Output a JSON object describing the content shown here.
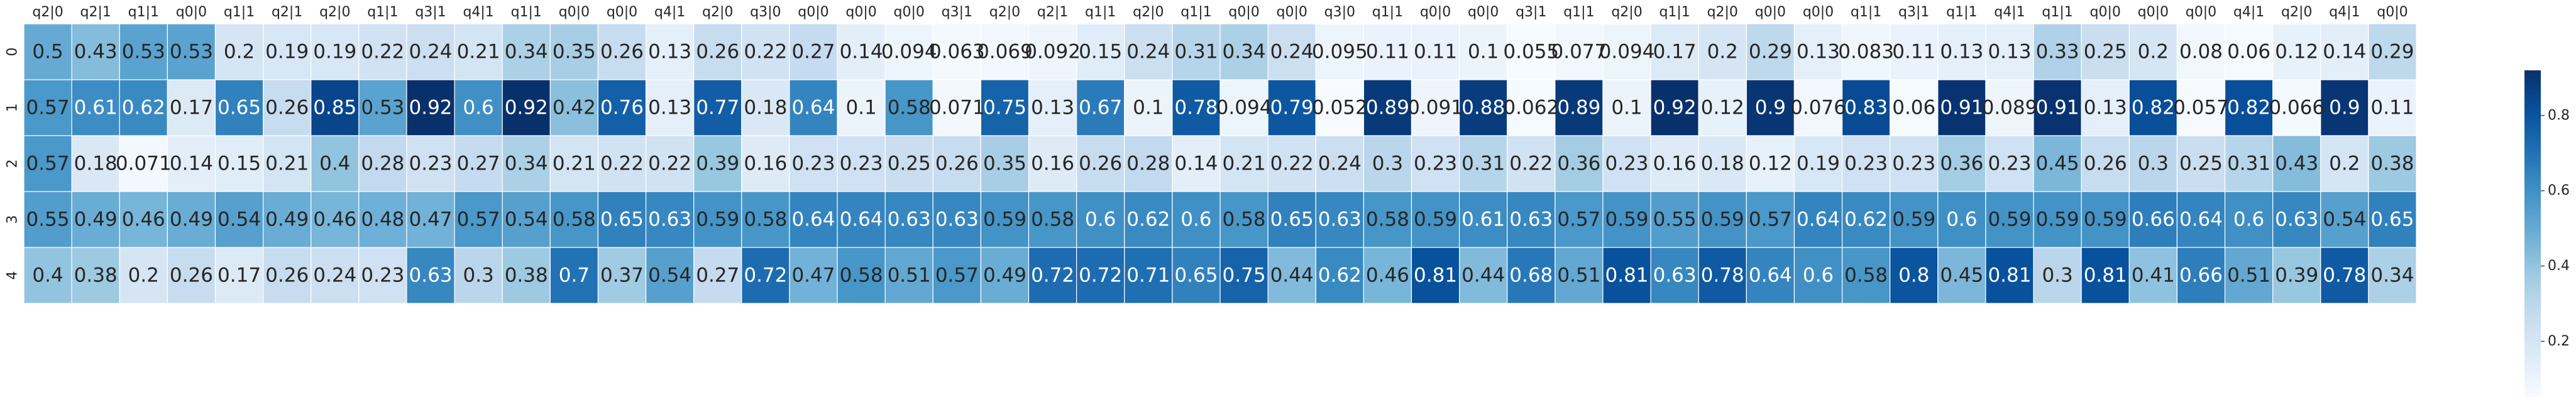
{
  "chart_data": {
    "type": "heatmap",
    "title": "",
    "xlabel": "",
    "ylabel": "",
    "x": [
      "q2|0",
      "q2|1",
      "q1|1",
      "q0|0",
      "q1|1",
      "q2|1",
      "q2|0",
      "q1|1",
      "q3|1",
      "q4|1",
      "q1|1",
      "q0|0",
      "q0|0",
      "q4|1",
      "q2|0",
      "q3|0",
      "q0|0",
      "q0|0",
      "q0|0",
      "q3|1",
      "q2|0",
      "q2|1",
      "q1|1",
      "q2|0",
      "q1|1",
      "q0|0",
      "q0|0",
      "q3|0",
      "q1|1",
      "q0|0",
      "q0|0",
      "q3|1",
      "q1|1",
      "q2|0",
      "q1|1",
      "q2|0",
      "q0|0",
      "q0|0",
      "q1|1",
      "q3|1",
      "q1|1",
      "q4|1",
      "q1|1",
      "q0|0",
      "q0|0",
      "q0|0",
      "q4|1",
      "q2|0",
      "q4|1",
      "q0|0"
    ],
    "y": [
      "0",
      "1",
      "2",
      "3",
      "4"
    ],
    "values": [
      [
        0.5,
        0.43,
        0.53,
        0.53,
        0.2,
        0.19,
        0.19,
        0.22,
        0.24,
        0.21,
        0.34,
        0.35,
        0.26,
        0.13,
        0.26,
        0.22,
        0.27,
        0.14,
        0.094,
        0.063,
        0.069,
        0.092,
        0.15,
        0.24,
        0.31,
        0.34,
        0.24,
        0.095,
        0.11,
        0.11,
        0.1,
        0.055,
        0.077,
        0.094,
        0.17,
        0.2,
        0.29,
        0.13,
        0.083,
        0.11,
        0.13,
        0.13,
        0.33,
        0.25,
        0.2,
        0.08,
        0.06,
        0.12,
        0.14,
        0.29
      ],
      [
        0.57,
        0.61,
        0.62,
        0.17,
        0.65,
        0.26,
        0.85,
        0.53,
        0.92,
        0.6,
        0.92,
        0.42,
        0.76,
        0.13,
        0.77,
        0.18,
        0.64,
        0.1,
        0.58,
        0.071,
        0.75,
        0.13,
        0.67,
        0.1,
        0.78,
        0.094,
        0.79,
        0.052,
        0.89,
        0.091,
        0.88,
        0.062,
        0.89,
        0.1,
        0.92,
        0.12,
        0.9,
        0.076,
        0.83,
        0.06,
        0.91,
        0.089,
        0.91,
        0.13,
        0.82,
        0.057,
        0.82,
        0.066,
        0.9,
        0.11
      ],
      [
        0.57,
        0.18,
        0.071,
        0.14,
        0.15,
        0.21,
        0.4,
        0.28,
        0.23,
        0.27,
        0.34,
        0.21,
        0.22,
        0.22,
        0.39,
        0.16,
        0.23,
        0.23,
        0.25,
        0.26,
        0.35,
        0.16,
        0.26,
        0.28,
        0.14,
        0.21,
        0.22,
        0.24,
        0.3,
        0.23,
        0.31,
        0.22,
        0.36,
        0.23,
        0.16,
        0.18,
        0.12,
        0.19,
        0.23,
        0.23,
        0.36,
        0.23,
        0.45,
        0.26,
        0.3,
        0.25,
        0.31,
        0.43,
        0.2,
        0.38
      ],
      [
        0.55,
        0.49,
        0.46,
        0.49,
        0.54,
        0.49,
        0.46,
        0.48,
        0.47,
        0.57,
        0.54,
        0.58,
        0.65,
        0.63,
        0.59,
        0.58,
        0.64,
        0.64,
        0.63,
        0.63,
        0.59,
        0.58,
        0.6,
        0.62,
        0.6,
        0.58,
        0.65,
        0.63,
        0.58,
        0.59,
        0.61,
        0.63,
        0.57,
        0.59,
        0.55,
        0.59,
        0.57,
        0.64,
        0.62,
        0.59,
        0.6,
        0.59,
        0.59,
        0.59,
        0.66,
        0.64,
        0.6,
        0.63,
        0.54,
        0.65
      ],
      [
        0.4,
        0.38,
        0.2,
        0.26,
        0.17,
        0.26,
        0.24,
        0.23,
        0.63,
        0.3,
        0.38,
        0.7,
        0.37,
        0.54,
        0.27,
        0.72,
        0.47,
        0.58,
        0.51,
        0.57,
        0.49,
        0.72,
        0.72,
        0.71,
        0.65,
        0.75,
        0.44,
        0.62,
        0.46,
        0.81,
        0.44,
        0.68,
        0.51,
        0.81,
        0.63,
        0.78,
        0.64,
        0.6,
        0.58,
        0.8,
        0.45,
        0.81,
        0.3,
        0.81,
        0.41,
        0.66,
        0.51,
        0.39,
        0.78,
        0.34
      ]
    ],
    "colormap": "Blues",
    "vmin": 0.052,
    "vmax": 0.92,
    "colorbar_ticks": [
      0.2,
      0.4,
      0.6,
      0.8
    ],
    "annot": true,
    "grid": false,
    "legend": "right",
    "cell_border_color": "#ffffff"
  }
}
